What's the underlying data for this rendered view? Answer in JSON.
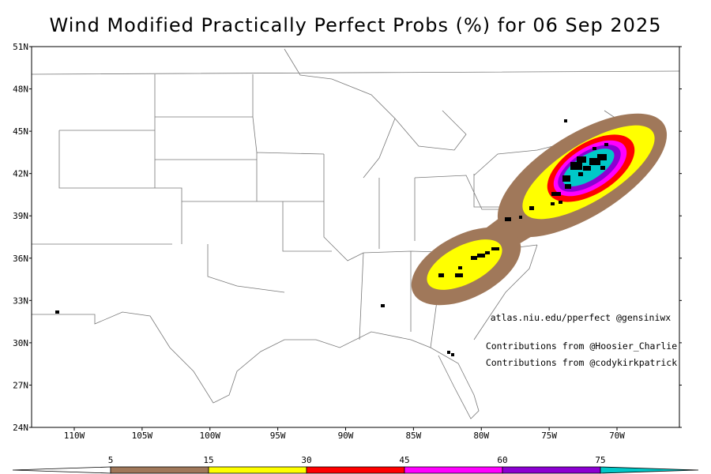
{
  "title": "Wind Modified Practically Perfect Probs (%) for 06 Sep 2025",
  "map": {
    "lat_ticks": [
      {
        "value": 51,
        "label": "51N"
      },
      {
        "value": 48,
        "label": "48N"
      },
      {
        "value": 45,
        "label": "45N"
      },
      {
        "value": 42,
        "label": "42N"
      },
      {
        "value": 39,
        "label": "39N"
      },
      {
        "value": 36,
        "label": "36N"
      },
      {
        "value": 33,
        "label": "33N"
      },
      {
        "value": 30,
        "label": "30N"
      },
      {
        "value": 27,
        "label": "27N"
      },
      {
        "value": 24,
        "label": "24N"
      }
    ],
    "lon_ticks": [
      {
        "value": -110,
        "label": "110W"
      },
      {
        "value": -105,
        "label": "105W"
      },
      {
        "value": -100,
        "label": "100W"
      },
      {
        "value": -95,
        "label": "95W"
      },
      {
        "value": -90,
        "label": "90W"
      },
      {
        "value": -85,
        "label": "85W"
      },
      {
        "value": -80,
        "label": "80W"
      },
      {
        "value": -75,
        "label": "75W"
      },
      {
        "value": -70,
        "label": "70W"
      }
    ]
  },
  "annotations": [
    "atlas.niu.edu/pperfect @gensiniwx",
    "Contributions from @Hoosier_Charlie",
    "Contributions from @codykirkpatrick"
  ],
  "colorbar": {
    "levels": [
      5,
      15,
      30,
      45,
      60,
      75
    ],
    "colors": [
      "#ffffff",
      "#a0785a",
      "#ffff00",
      "#ff0000",
      "#ff00ff",
      "#8c00d2",
      "#00c8c8"
    ]
  }
}
